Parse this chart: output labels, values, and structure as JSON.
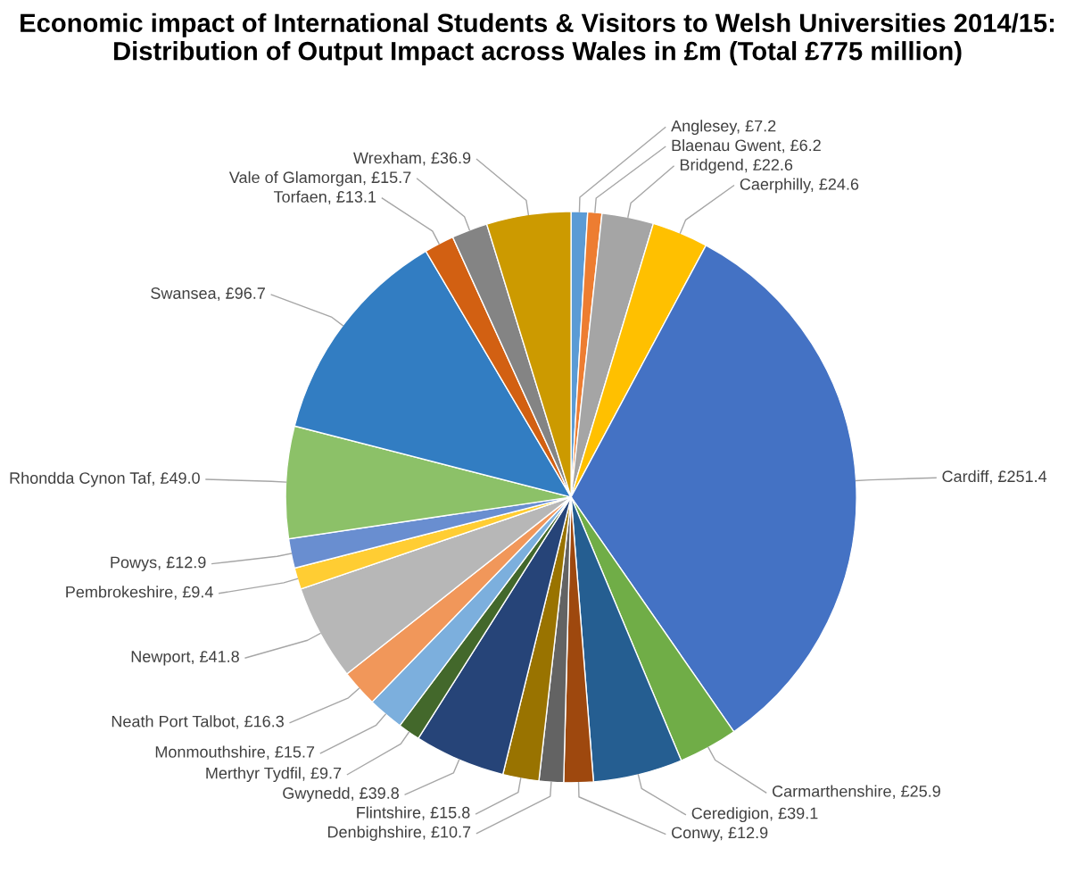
{
  "chart_data": {
    "type": "pie",
    "title": "Economic impact of International Students & Visitors to Welsh Universities 2014/15: Distribution of Output Impact across Wales in £m (Total £775 million)",
    "categories": [
      "Anglesey",
      "Blaenau Gwent",
      "Bridgend",
      "Caerphilly",
      "Cardiff",
      "Carmarthenshire",
      "Ceredigion",
      "Conwy",
      "Denbighshire",
      "Flintshire",
      "Gwynedd",
      "Merthyr Tydfil",
      "Monmouthshire",
      "Neath Port Talbot",
      "Newport",
      "Pembrokeshire",
      "Powys",
      "Rhondda Cynon Taf",
      "Swansea",
      "Torfaen",
      "Vale of Glamorgan",
      "Wrexham"
    ],
    "values": [
      7.2,
      6.2,
      22.6,
      24.6,
      251.4,
      25.9,
      39.1,
      12.9,
      10.7,
      15.8,
      39.8,
      9.7,
      15.7,
      16.3,
      41.8,
      9.4,
      12.9,
      49.0,
      96.7,
      13.1,
      15.7,
      36.9
    ],
    "value_labels": [
      "£7.2",
      "£6.2",
      "£22.6",
      "£24.6",
      "£251.4",
      "£25.9",
      "£39.1",
      "£12.9",
      "£10.7",
      "£15.8",
      "£39.8",
      "£9.7",
      "£15.7",
      "£16.3",
      "£41.8",
      "£9.4",
      "£12.9",
      "£49.0",
      "£96.7",
      "£13.1",
      "£15.7",
      "£36.9"
    ],
    "colors": [
      "#5b9bd5",
      "#ed7d31",
      "#a5a5a5",
      "#ffc000",
      "#4472c4",
      "#70ad47",
      "#255e91",
      "#9e480e",
      "#636363",
      "#997300",
      "#264478",
      "#43682b",
      "#7cafdd",
      "#f1975a",
      "#b7b7b7",
      "#ffcd33",
      "#698ed0",
      "#8cc168",
      "#327dc2",
      "#d26012",
      "#848484",
      "#cc9a00"
    ],
    "legend": false
  }
}
